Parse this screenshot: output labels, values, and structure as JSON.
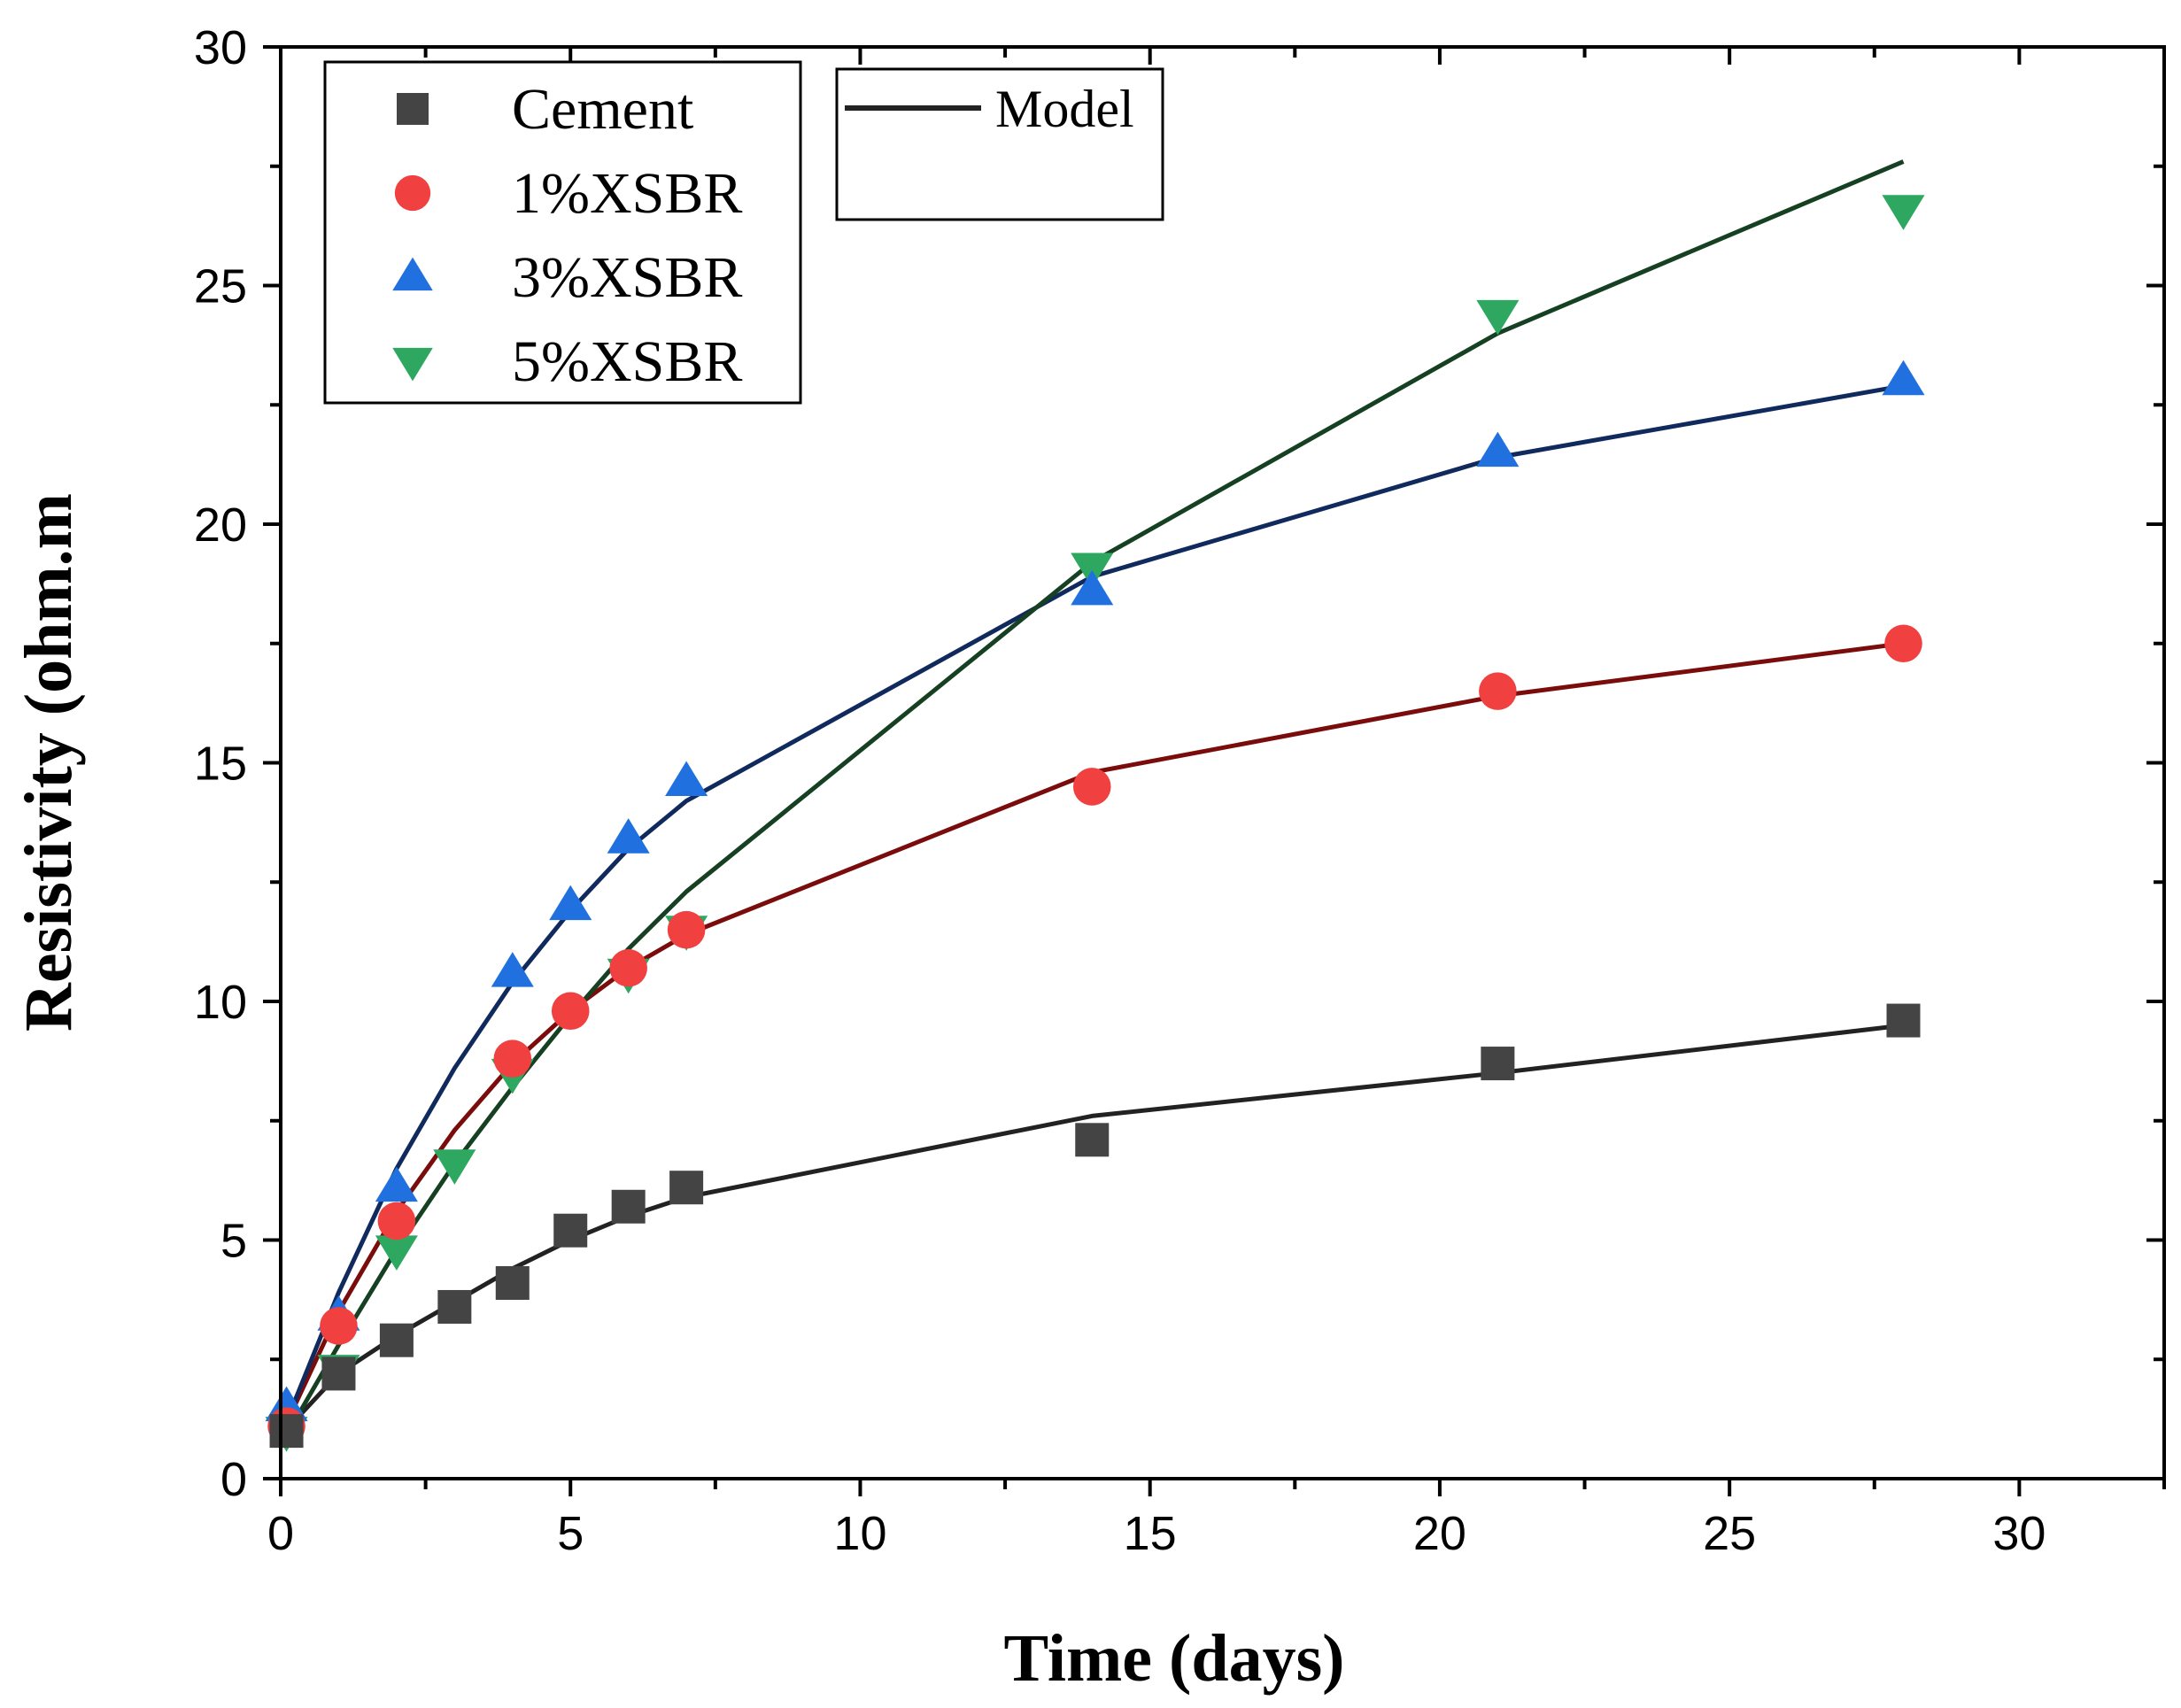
{
  "chart_data": {
    "type": "scatter",
    "title": "",
    "xlabel": "Time (days)",
    "ylabel": "Resistivity (ohm.m",
    "xlim": [
      0,
      32.5
    ],
    "ylim": [
      0,
      30
    ],
    "x_ticks": [
      0,
      5,
      10,
      15,
      20,
      25,
      30
    ],
    "y_ticks": [
      0,
      5,
      10,
      15,
      20,
      25,
      30
    ],
    "x_tick_labels": [
      "0",
      "5",
      "10",
      "15",
      "20",
      "25",
      "30"
    ],
    "y_tick_labels": [
      "0",
      "5",
      "10",
      "15",
      "20",
      "25",
      "30"
    ],
    "grid": false,
    "legend_position": "top-left",
    "model_legend_label": "Model",
    "series": [
      {
        "name": "Cement",
        "marker": "square",
        "color": "#444444",
        "line_color": "#222222",
        "x": [
          0.1,
          1,
          2,
          3,
          4,
          5,
          6,
          7,
          14,
          21,
          28
        ],
        "values": [
          1.0,
          2.2,
          2.9,
          3.6,
          4.1,
          5.2,
          5.7,
          6.1,
          7.1,
          8.7,
          9.6
        ],
        "model_x": [
          0,
          1,
          2,
          3,
          4,
          5,
          6,
          7,
          14,
          21,
          28
        ],
        "model_y": [
          0.9,
          2.2,
          3.0,
          3.7,
          4.4,
          5.0,
          5.5,
          5.9,
          7.6,
          8.5,
          9.5
        ]
      },
      {
        "name": "1%XSBR",
        "marker": "circle",
        "color": "#f04040",
        "line_color": "#7a0c0c",
        "x": [
          0.1,
          1,
          2,
          4,
          5,
          6,
          7,
          14,
          21,
          28
        ],
        "values": [
          1.1,
          3.2,
          5.4,
          8.8,
          9.8,
          10.7,
          11.5,
          14.5,
          16.5,
          17.5
        ],
        "model_x": [
          0,
          1,
          2,
          3,
          4,
          5,
          6,
          7,
          14,
          21,
          28
        ],
        "model_y": [
          0.9,
          3.5,
          5.6,
          7.3,
          8.7,
          9.8,
          10.7,
          11.4,
          14.8,
          16.4,
          17.5
        ]
      },
      {
        "name": "3%XSBR",
        "marker": "triangle-up",
        "color": "#2070e0",
        "line_color": "#102a5e",
        "x": [
          0.1,
          1,
          2,
          4,
          5,
          6,
          7,
          14,
          21,
          28
        ],
        "values": [
          1.5,
          3.4,
          6.1,
          10.6,
          12.0,
          13.4,
          14.6,
          18.6,
          21.5,
          23.0
        ],
        "model_x": [
          0,
          1,
          2,
          3,
          4,
          5,
          6,
          7,
          14,
          21,
          28
        ],
        "model_y": [
          0.9,
          3.9,
          6.5,
          8.6,
          10.4,
          11.9,
          13.2,
          14.2,
          18.9,
          21.4,
          22.9
        ]
      },
      {
        "name": "5%XSBR",
        "marker": "triangle-down",
        "color": "#2ea860",
        "line_color": "#164022",
        "x": [
          0.1,
          1,
          2,
          3,
          4,
          6,
          7,
          14,
          21,
          28
        ],
        "values": [
          1.0,
          2.3,
          4.8,
          6.6,
          8.5,
          10.6,
          11.5,
          19.1,
          24.4,
          26.6
        ],
        "model_x": [
          0,
          1,
          2,
          3,
          4,
          5,
          6,
          7,
          14,
          21,
          28
        ],
        "model_y": [
          0.7,
          2.8,
          4.8,
          6.6,
          8.2,
          9.7,
          11.1,
          12.3,
          19.2,
          24.0,
          27.6
        ]
      }
    ]
  }
}
